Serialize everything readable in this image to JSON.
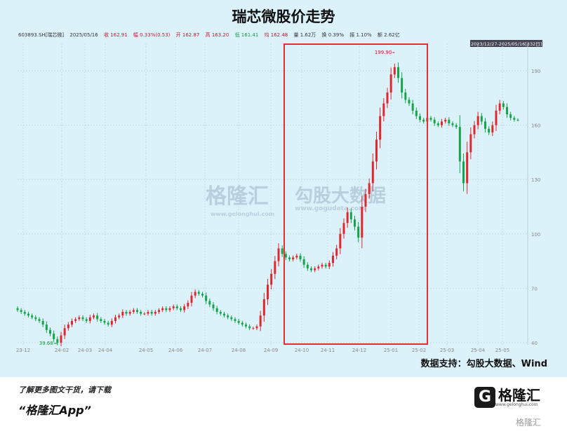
{
  "title": "瑞芯微股价走势",
  "info": {
    "code": "603893.SH[瑞芯微]",
    "date": "2025/05/16",
    "close": "收 162.91",
    "change": "幅 0.33%(0.53)",
    "open": "开 162.87",
    "high": "高 163.20",
    "low": "低 161.41",
    "avg": "均 162.48",
    "volume": "量 1.62万",
    "turnover": "换 0.39%",
    "amplitude": "振 1.10%",
    "amount": "额 2.62亿"
  },
  "range_label": "2023/12/27-2025/05/16[332日]",
  "source": "数据支持：勾股大数据、Wind",
  "watermarks": [
    "格隆汇",
    "www.gelonghui.com",
    "勾股大数据",
    "www.gogudata.com"
  ],
  "promo": {
    "line1": "了解更多图文干货，请下载",
    "line2": "“格隆汇App”"
  },
  "logo": {
    "text": "格隆汇",
    "url": "www.gelonghui.com",
    "corner": "格隆汇"
  },
  "colors": {
    "up": "#e0262f",
    "down": "#16a34a",
    "highlight": "#e03030",
    "background": "#dcf2fb"
  },
  "chart_data": {
    "type": "candlestick",
    "ylim": [
      40,
      195
    ],
    "yticks": [
      40,
      70,
      100,
      130,
      160,
      190
    ],
    "xtick_labels": [
      "23-12",
      "24-02",
      "24-03",
      "24-04",
      "24-05",
      "24-06",
      "24-07",
      "24-08",
      "24-09",
      "24-10",
      "24-11",
      "24-12",
      "25-01",
      "25-02",
      "25-03",
      "25-04",
      "25-05"
    ],
    "annotations": [
      {
        "label": "199.90",
        "type": "max"
      },
      {
        "label": "39.68",
        "type": "min"
      }
    ],
    "highlight_range": [
      "24-09",
      "25-02"
    ],
    "closes": [
      58,
      57,
      56,
      55,
      54,
      53,
      52,
      50,
      47,
      45,
      42,
      40,
      44,
      48,
      50,
      52,
      53,
      54,
      53,
      52,
      54,
      55,
      53,
      52,
      51,
      50,
      52,
      54,
      55,
      57,
      56,
      57,
      58,
      57,
      56,
      56,
      57,
      56,
      57,
      58,
      59,
      58,
      59,
      60,
      59,
      58,
      60,
      62,
      66,
      68,
      67,
      66,
      63,
      61,
      59,
      57,
      56,
      55,
      54,
      53,
      52,
      51,
      50,
      49,
      48,
      48,
      49,
      55,
      64,
      72,
      78,
      85,
      92,
      89,
      87,
      86,
      87,
      88,
      86,
      83,
      81,
      80,
      81,
      82,
      83,
      82,
      84,
      88,
      92,
      100,
      106,
      112,
      108,
      104,
      98,
      115,
      122,
      128,
      140,
      152,
      165,
      172,
      178,
      188,
      192,
      186,
      178,
      174,
      172,
      168,
      165,
      163,
      162,
      164,
      163,
      161,
      160,
      162,
      163,
      161,
      160,
      159,
      140,
      128,
      145,
      155,
      160,
      165,
      162,
      158,
      156,
      160,
      168,
      172,
      170,
      166,
      164,
      163,
      162.91
    ]
  }
}
